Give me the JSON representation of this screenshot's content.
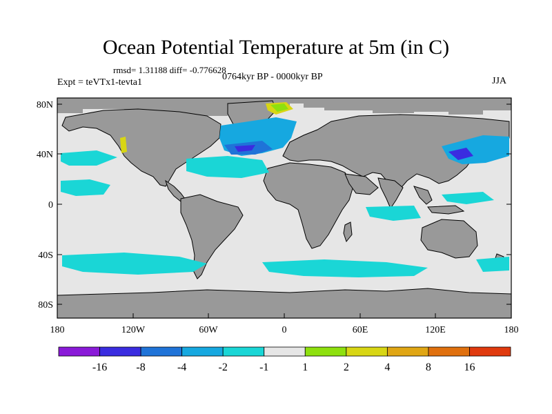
{
  "title": "Ocean Potential Temperature at 5m (in C)",
  "stats": "rmsd= 1.31188 diff= -0.776628",
  "experiment": "Expt = teVTx1-tevta1",
  "period": "0764kyr BP - 0000kyr BP",
  "season": "JJA",
  "y_axis_labels": [
    "80N",
    "40N",
    "0",
    "40S",
    "80S"
  ],
  "x_axis_labels": [
    "180",
    "120W",
    "60W",
    "0",
    "60E",
    "120E",
    "180"
  ],
  "colorbar": {
    "labels": [
      "-16",
      "-8",
      "-4",
      "-2",
      "-1",
      "1",
      "2",
      "4",
      "8",
      "16"
    ],
    "colors": [
      "#8a1ad8",
      "#3a2ce0",
      "#1f73d8",
      "#16a8e0",
      "#1ad6d6",
      "#e6e6e6",
      "#8ee00e",
      "#d8d614",
      "#e0a614",
      "#e0700e",
      "#e03a0e"
    ]
  },
  "colors": {
    "land": "#999999",
    "neutral_ocean": "#e6e6e6",
    "cool_light": "#1ad6d6",
    "cool_medium": "#16a8e0",
    "cool_strong": "#1f73d8",
    "cool_deep": "#3a2ce0",
    "warm_light": "#8ee00e",
    "warm_medium": "#d8d614"
  }
}
